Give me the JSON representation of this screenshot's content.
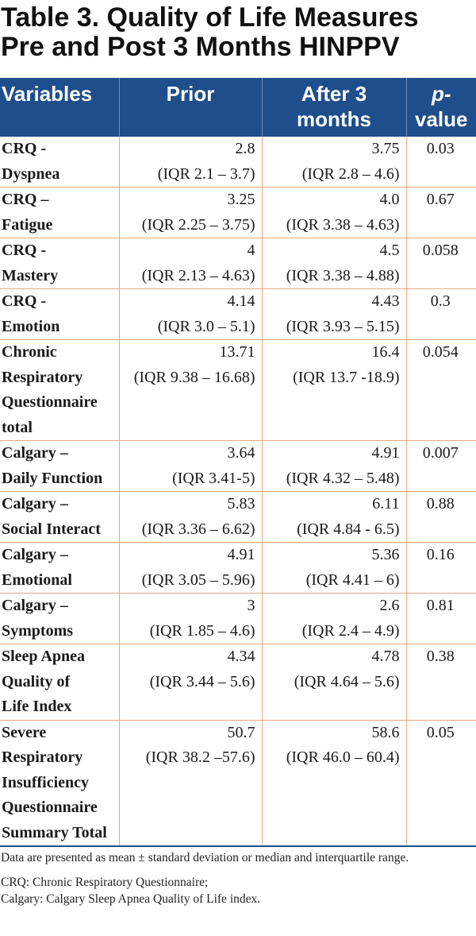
{
  "title": {
    "line1": "Table 3. Quality of Life Measures",
    "line2": "Pre and Post 3 Months HINPPV"
  },
  "headers": {
    "variables": "Variables",
    "prior": "Prior",
    "after_line1": "After 3",
    "after_line2": "months",
    "p_line1": "p-",
    "p_line2": "value"
  },
  "rows": [
    {
      "variable": [
        "CRQ -",
        "Dyspnea"
      ],
      "prior": "2.8",
      "prior_iqr": "(IQR 2.1 – 3.7)",
      "after": "3.75",
      "after_iqr": "(IQR 2.8 – 4.6)",
      "p": "0.03"
    },
    {
      "variable": [
        "CRQ –",
        "Fatigue"
      ],
      "prior": "3.25",
      "prior_iqr": "(IQR 2.25 – 3.75)",
      "after": "4.0",
      "after_iqr": "(IQR 3.38 – 4.63)",
      "p": "0.67"
    },
    {
      "variable": [
        "CRQ -",
        "Mastery"
      ],
      "prior": "4",
      "prior_iqr": "(IQR 2.13 – 4.63)",
      "after": "4.5",
      "after_iqr": "(IQR 3.38 – 4.88)",
      "p": "0.058"
    },
    {
      "variable": [
        "CRQ -",
        "Emotion"
      ],
      "prior": "4.14",
      "prior_iqr": "(IQR 3.0 – 5.1)",
      "after": "4.43",
      "after_iqr": "(IQR 3.93 – 5.15)",
      "p": "0.3"
    },
    {
      "variable": [
        "Chronic",
        "Respiratory",
        "Questionnaire",
        "total"
      ],
      "prior": "13.71",
      "prior_iqr": "(IQR 9.38 – 16.68)",
      "after": "16.4",
      "after_iqr": "(IQR 13.7 -18.9)",
      "p": "0.054"
    },
    {
      "variable": [
        "Calgary –",
        "Daily Function"
      ],
      "prior": "3.64",
      "prior_iqr": "(IQR 3.41-5)",
      "after": "4.91",
      "after_iqr": "(IQR 4.32 – 5.48)",
      "p": "0.007"
    },
    {
      "variable": [
        "Calgary –",
        "Social Interact"
      ],
      "prior": "5.83",
      "prior_iqr": "(IQR 3.36 – 6.62)",
      "after": "6.11",
      "after_iqr": "(IQR 4.84 - 6.5)",
      "p": "0.88"
    },
    {
      "variable": [
        "Calgary –",
        "Emotional"
      ],
      "prior": "4.91",
      "prior_iqr": "(IQR 3.05 – 5.96)",
      "after": "5.36",
      "after_iqr": "(IQR 4.41 – 6)",
      "p": "0.16"
    },
    {
      "variable": [
        "Calgary –",
        "Symptoms"
      ],
      "prior": "3",
      "prior_iqr": "(IQR 1.85 – 4.6)",
      "after": "2.6",
      "after_iqr": "(IQR 2.4 – 4.9)",
      "p": "0.81"
    },
    {
      "variable": [
        "Sleep Apnea",
        "Quality of",
        "Life Index"
      ],
      "prior": "4.34",
      "prior_iqr": "(IQR 3.44 – 5.6)",
      "after": "4.78",
      "after_iqr": "(IQR 4.64 – 5.6)",
      "p": "0.38"
    },
    {
      "variable": [
        "Severe",
        "Respiratory",
        "Insufficiency",
        "Questionnaire",
        "Summary Total"
      ],
      "prior": "50.7",
      "prior_iqr": "(IQR 38.2 –57.6)",
      "after": "58.6",
      "after_iqr": "(IQR 46.0 – 60.4)",
      "p": "0.05"
    }
  ],
  "notes": {
    "line1": "Data are presented as mean ± standard deviation or median and interquartile range.",
    "line2a": "CRQ: Chronic Respiratory Questionnaire;",
    "line2b": "Calgary: Calgary Sleep Apnea Quality of Life index."
  }
}
